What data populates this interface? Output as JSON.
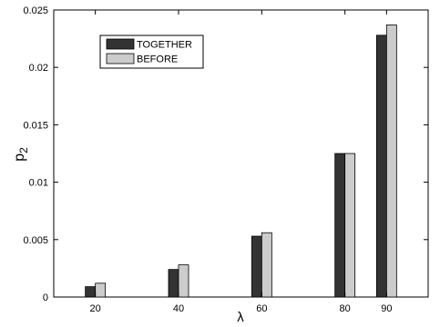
{
  "chart_data": {
    "type": "bar",
    "categories": [
      "20",
      "40",
      "60",
      "80",
      "90"
    ],
    "x": [
      20,
      40,
      60,
      80,
      90
    ],
    "series": [
      {
        "name": "TOGETHER",
        "color": "#333333",
        "values": [
          0.0009,
          0.0024,
          0.0053,
          0.0125,
          0.0228
        ]
      },
      {
        "name": "BEFORE",
        "color": "#cccccc",
        "values": [
          0.0012,
          0.0028,
          0.0056,
          0.0125,
          0.0237
        ]
      }
    ],
    "xlabel": "λ",
    "ylabel_main": "p",
    "ylabel_sub": "2",
    "xlim": [
      10,
      100
    ],
    "ylim": [
      0,
      0.025
    ],
    "xticks": [
      "20",
      "40",
      "60",
      "80",
      "90"
    ],
    "yticks": [
      "0",
      "0.005",
      "0.01",
      "0.015",
      "0.02",
      "0.025"
    ],
    "ytick_values": [
      0,
      0.005,
      0.01,
      0.015,
      0.02,
      0.025
    ],
    "grid": false,
    "legend_position": "top-left"
  }
}
